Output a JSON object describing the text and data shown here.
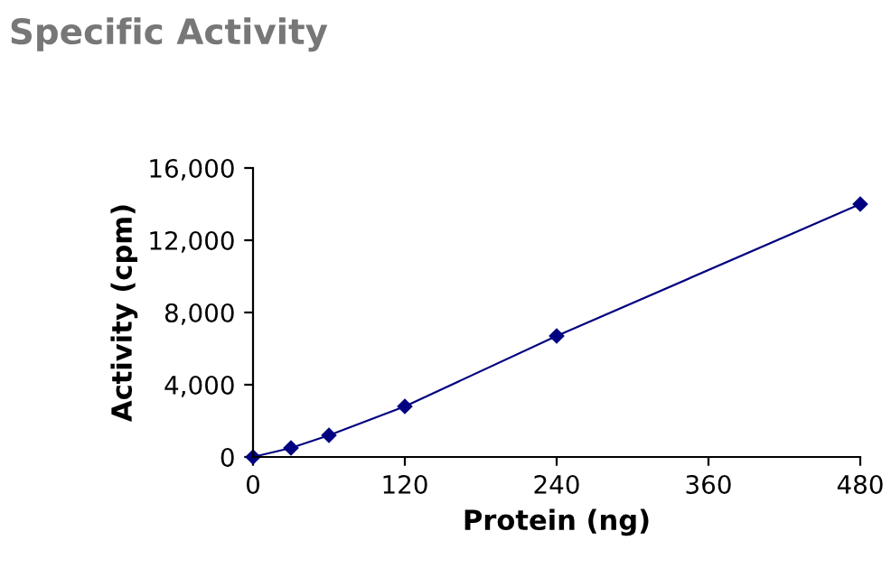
{
  "chart_data": {
    "type": "line",
    "title": "Specific Activity",
    "xlabel": "Protein (ng)",
    "ylabel": "Activity (cpm)",
    "x": [
      0,
      30,
      60,
      120,
      240,
      480
    ],
    "series": [
      {
        "color": "#000080",
        "values": [
          0,
          500,
          1200,
          2800,
          6700,
          14000
        ]
      }
    ],
    "xlim": [
      0,
      480
    ],
    "xticks": [
      0,
      120,
      240,
      360,
      480
    ],
    "ylim": [
      0,
      16000
    ],
    "yticks": [
      {
        "value": 0,
        "label": "0"
      },
      {
        "value": 4000,
        "label": "4,000"
      },
      {
        "value": 8000,
        "label": "8,000"
      },
      {
        "value": 12000,
        "label": "12,000"
      },
      {
        "value": 16000,
        "label": "16,000"
      }
    ],
    "marker": "diamond",
    "line_style": "solid",
    "grid": false,
    "legend": false
  }
}
